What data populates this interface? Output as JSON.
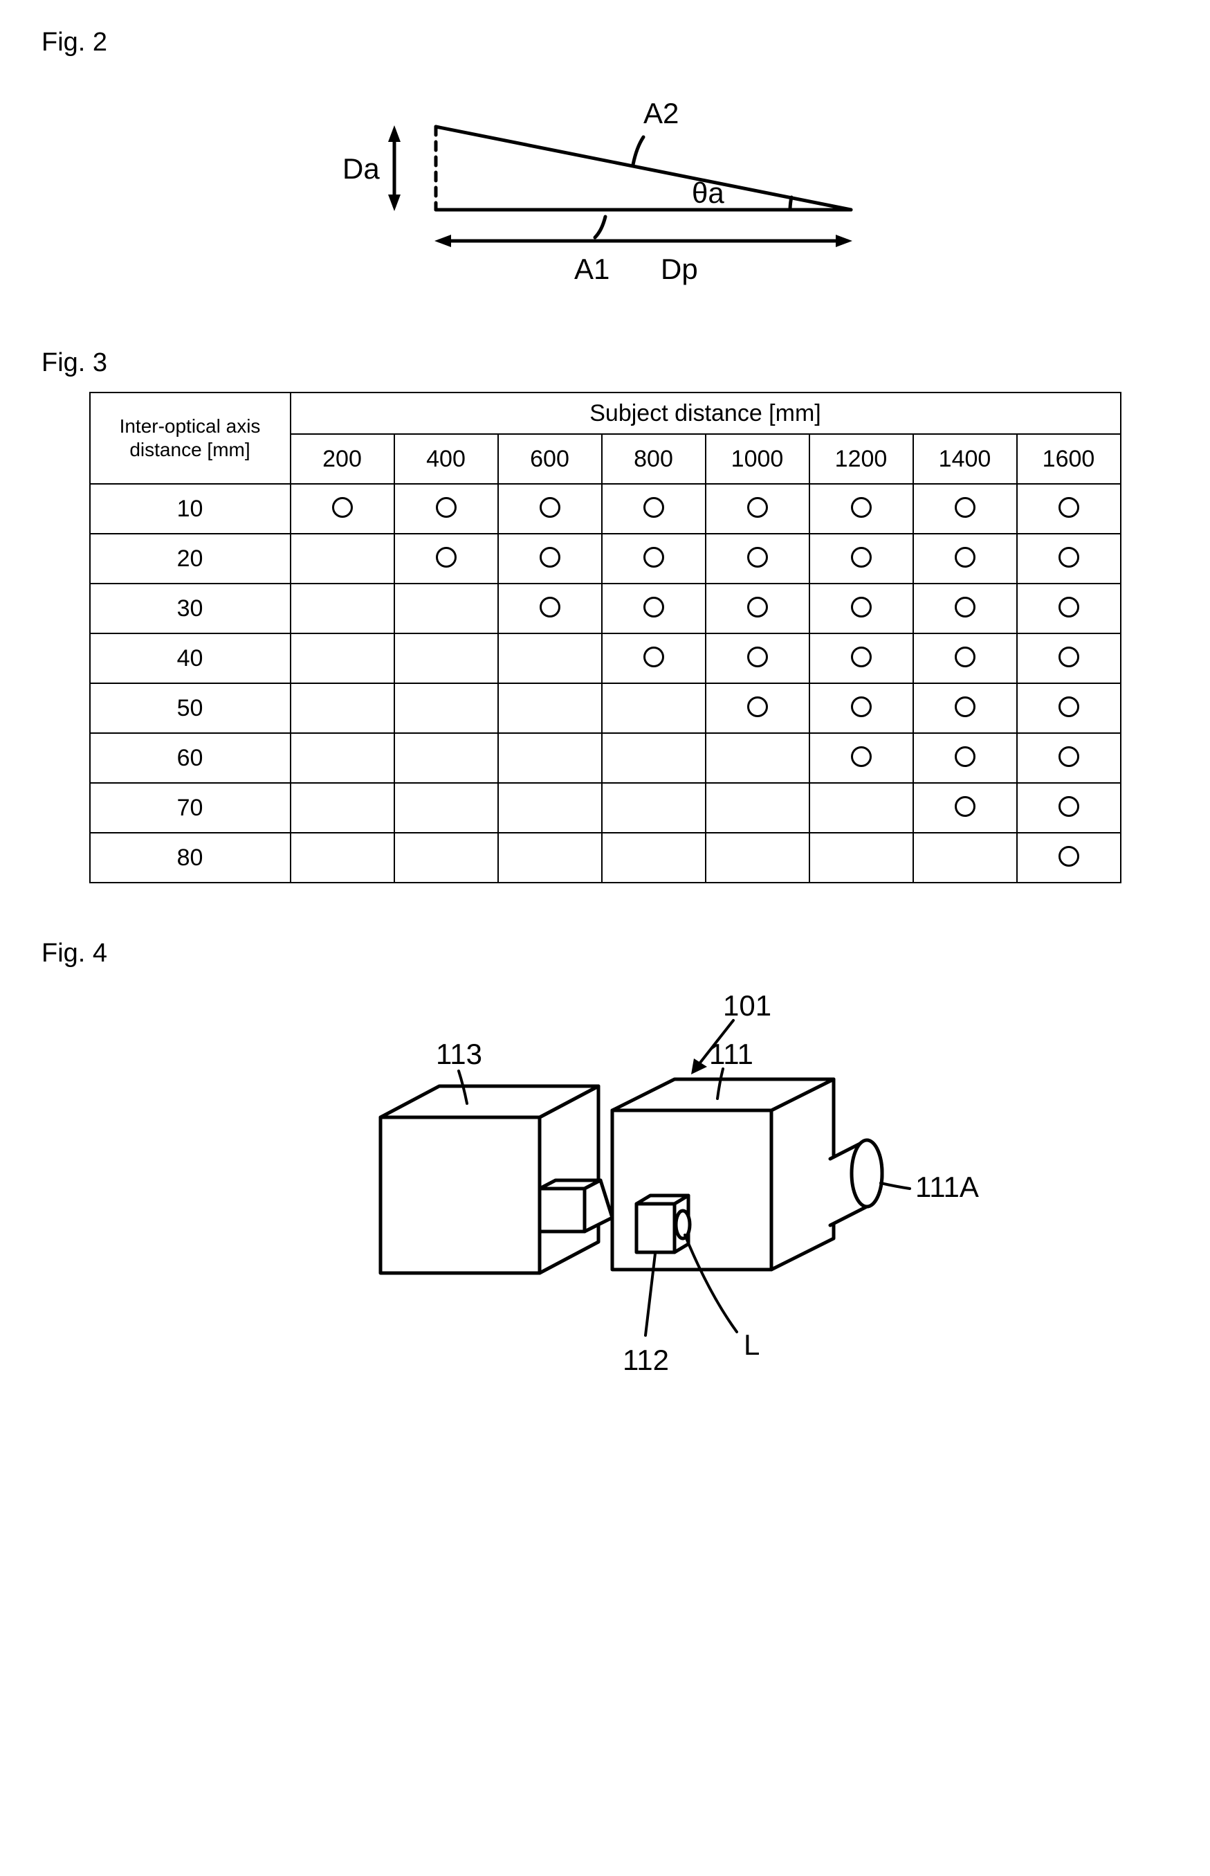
{
  "fig2": {
    "label": "Fig. 2",
    "diagram": {
      "type": "geometric-diagram",
      "stroke": "#000000",
      "stroke_width": 4,
      "labels": {
        "a1": "A1",
        "a2": "A2",
        "da": "Da",
        "dp": "Dp",
        "theta": "θa"
      },
      "geometry": {
        "dp_length": 600,
        "da_height": 110,
        "angle_deg": 10
      },
      "font_size": 38
    }
  },
  "fig3": {
    "label": "Fig. 3",
    "table": {
      "type": "table",
      "row_header_title": "Inter-optical axis distance [mm]",
      "col_header_title": "Subject distance [mm]",
      "columns": [
        "200",
        "400",
        "600",
        "800",
        "1000",
        "1200",
        "1400",
        "1600"
      ],
      "rows": [
        {
          "label": "10",
          "cells": [
            true,
            true,
            true,
            true,
            true,
            true,
            true,
            true
          ]
        },
        {
          "label": "20",
          "cells": [
            false,
            true,
            true,
            true,
            true,
            true,
            true,
            true
          ]
        },
        {
          "label": "30",
          "cells": [
            false,
            false,
            true,
            true,
            true,
            true,
            true,
            true
          ]
        },
        {
          "label": "40",
          "cells": [
            false,
            false,
            false,
            true,
            true,
            true,
            true,
            true
          ]
        },
        {
          "label": "50",
          "cells": [
            false,
            false,
            false,
            false,
            true,
            true,
            true,
            true
          ]
        },
        {
          "label": "60",
          "cells": [
            false,
            false,
            false,
            false,
            false,
            true,
            true,
            true
          ]
        },
        {
          "label": "70",
          "cells": [
            false,
            false,
            false,
            false,
            false,
            false,
            true,
            true
          ]
        },
        {
          "label": "80",
          "cells": [
            false,
            false,
            false,
            false,
            false,
            false,
            false,
            true
          ]
        }
      ],
      "mark": "O",
      "border_color": "#000000",
      "font_size": 34
    }
  },
  "fig4": {
    "label": "Fig. 4",
    "diagram": {
      "type": "isometric-diagram",
      "stroke": "#000000",
      "stroke_width": 4,
      "font_size": 38,
      "labels": {
        "ref_101": "101",
        "ref_111": "111",
        "ref_111a": "111A",
        "ref_112": "112",
        "ref_113": "113",
        "ref_L": "L"
      }
    }
  }
}
